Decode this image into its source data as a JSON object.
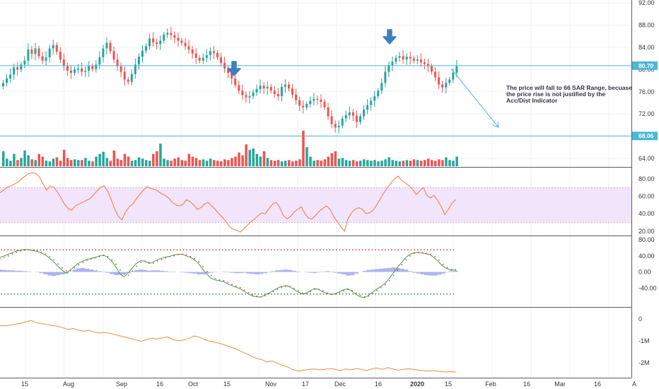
{
  "colors": {
    "up": "#26a69a",
    "down": "#ef5350",
    "level_line": "#4bb8d6",
    "rsi_line": "#f07a3a",
    "rsi_band": "#f1e4fb",
    "osc_line": "#c0504d",
    "osc_signal": "#4c9a4c",
    "osc_hist": "#9fa8ea",
    "acc_line": "#f08b3d",
    "arrow": "#3f7fc0",
    "badge": "#4bb8d6",
    "dots_top": "#d93a3a",
    "dots_bottom": "#2f8f3a"
  },
  "chart_data": [
    {
      "type": "candlestick",
      "name": "price",
      "y_ticks": [
        "92.00",
        "88.00",
        "84.00",
        "80.00",
        "76.00",
        "72.00",
        "68.00",
        "64.00"
      ],
      "ylim": [
        63,
        92
      ],
      "level_lines": [
        {
          "value": 80.7,
          "label": "80.70"
        },
        {
          "value": 68.06,
          "label": "68.06"
        }
      ],
      "closes": [
        77.6,
        78.4,
        79.1,
        80.4,
        80.0,
        80.9,
        81.6,
        83.6,
        82.8,
        83.8,
        82.4,
        81.6,
        82.2,
        83.8,
        84.4,
        83.2,
        81.8,
        80.6,
        79.8,
        79.4,
        80.0,
        80.2,
        79.6,
        79.8,
        80.6,
        80.1,
        80.9,
        82.2,
        83.8,
        84.8,
        83.3,
        81.8,
        80.6,
        79.6,
        78.2,
        77.8,
        79.2,
        80.9,
        82.3,
        83.4,
        84.2,
        85.6,
        84.9,
        84.6,
        85.2,
        86.3,
        86.6,
        86.2,
        85.7,
        85.2,
        84.8,
        84.2,
        83.6,
        82.9,
        82.1,
        81.6,
        82.1,
        82.6,
        83.3,
        83.0,
        82.2,
        81.2,
        80.2,
        79.4,
        78.4,
        77.2,
        76.2,
        75.4,
        75.0,
        75.2,
        75.9,
        76.5,
        77.1,
        76.6,
        76.9,
        76.2,
        75.6,
        75.2,
        76.9,
        77.3,
        76.6,
        75.5,
        74.5,
        73.5,
        73.2,
        73.8,
        74.4,
        74.7,
        74.6,
        74.2,
        73.2,
        71.6,
        70.2,
        69.6,
        69.9,
        71.2,
        71.8,
        72.3,
        71.7,
        70.6,
        71.6,
        72.8,
        73.6,
        74.4,
        75.2,
        76.2,
        77.6,
        79.6,
        80.8,
        81.4,
        82.1,
        82.4,
        81.8,
        82.3,
        82.0,
        81.6,
        81.8,
        81.3,
        81.0,
        80.6,
        79.6,
        78.6,
        77.3,
        76.8,
        77.6,
        78.2,
        79.4,
        80.6
      ]
    },
    {
      "type": "bar",
      "name": "volume",
      "values": [
        2.2,
        1.1,
        0.8,
        1.8,
        0.9,
        1.2,
        2.3,
        1.6,
        1.0,
        0.9,
        1.8,
        1.4,
        0.8,
        0.7,
        1.1,
        1.3,
        0.8,
        2.4,
        1.2,
        0.9,
        1.0,
        0.9,
        0.9,
        1.2,
        0.8,
        0.7,
        1.4,
        1.8,
        2.1,
        1.2,
        0.8,
        2.3,
        1.1,
        0.9,
        1.8,
        1.4,
        0.8,
        0.9,
        1.3,
        1.1,
        0.9,
        0.8,
        1.8,
        2.2,
        3.3,
        1.1,
        0.9,
        0.8,
        1.1,
        1.3,
        0.9,
        0.8,
        1.8,
        1.4,
        1.2,
        0.9,
        1.0,
        0.8,
        1.1,
        0.9,
        0.8,
        0.7,
        1.0,
        0.9,
        1.2,
        1.4,
        2.0,
        1.6,
        3.2,
        2.4,
        2.6,
        1.8,
        1.4,
        2.2,
        1.2,
        0.9,
        0.8,
        0.9,
        0.7,
        0.8,
        0.9,
        0.7,
        0.8,
        1.0,
        5.2,
        2.8,
        1.4,
        0.8,
        0.9,
        0.8,
        1.0,
        1.4,
        1.9,
        2.2,
        1.1,
        1.2,
        0.9,
        0.8,
        0.9,
        0.7,
        0.8,
        1.0,
        0.9,
        0.8,
        0.9,
        0.7,
        0.8,
        1.0,
        1.3,
        0.9,
        0.8,
        0.7,
        0.8,
        0.9,
        0.8,
        1.0,
        0.9,
        0.8,
        0.9,
        1.1,
        0.9,
        0.8,
        1.0,
        0.9,
        1.3,
        0.9,
        0.8,
        1.4
      ],
      "max": 6
    },
    {
      "type": "line",
      "name": "rsi",
      "y_ticks": [
        "80.00",
        "60.00",
        "40.00",
        "20.00"
      ],
      "ylim": [
        15,
        92
      ],
      "band": [
        30,
        70
      ],
      "values": [
        64,
        67,
        70,
        72,
        74,
        76,
        80,
        83,
        86,
        87,
        86,
        82,
        74,
        67,
        72,
        70,
        65,
        58,
        51,
        46,
        44,
        49,
        51,
        53,
        55,
        57,
        61,
        66,
        70,
        72,
        66,
        56,
        45,
        37,
        33,
        42,
        48,
        51,
        57,
        62,
        67,
        71,
        69,
        68,
        66,
        63,
        61,
        58,
        53,
        50,
        49,
        51,
        56,
        54,
        50,
        45,
        47,
        51,
        53,
        49,
        45,
        40,
        36,
        31,
        25,
        22,
        21,
        19,
        23,
        27,
        31,
        34,
        38,
        41,
        40,
        46,
        51,
        53,
        47,
        38,
        34,
        37,
        42,
        45,
        48,
        40,
        35,
        34,
        38,
        43,
        46,
        49,
        45,
        37,
        31,
        25,
        20,
        34,
        41,
        45,
        47,
        45,
        40,
        41,
        44,
        50,
        57,
        64,
        70,
        75,
        80,
        83,
        78,
        75,
        72,
        68,
        62,
        66,
        70,
        61,
        58,
        61,
        55,
        48,
        39,
        45,
        52,
        56
      ],
      "x_offset": 0
    },
    {
      "type": "line",
      "name": "oscillator",
      "y_ticks": [
        "80.00",
        "40.00",
        "0.00",
        "-40.00"
      ],
      "ylim": [
        -80,
        80
      ],
      "upper_dots": 55,
      "lower_dots": -55,
      "k": [
        36,
        40,
        44,
        48,
        52,
        54,
        56,
        55,
        53,
        51,
        47,
        42,
        34,
        25,
        14,
        4,
        -3,
        5,
        14,
        22,
        27,
        31,
        34,
        36,
        40,
        42,
        36,
        26,
        12,
        -6,
        -12,
        -2,
        11,
        22,
        28,
        27,
        21,
        25,
        30,
        34,
        37,
        39,
        42,
        44,
        44,
        40,
        36,
        30,
        20,
        6,
        -6,
        -16,
        -20,
        -22,
        -24,
        -30,
        -34,
        -38,
        -42,
        -48,
        -55,
        -60,
        -62,
        -62,
        -57,
        -52,
        -46,
        -40,
        -36,
        -34,
        -37,
        -44,
        -50,
        -55,
        -52,
        -46,
        -41,
        -44,
        -50,
        -54,
        -56,
        -54,
        -49,
        -44,
        -42,
        -48,
        -56,
        -62,
        -64,
        -58,
        -50,
        -42,
        -36,
        -28,
        -16,
        -2,
        12,
        24,
        36,
        44,
        48,
        48,
        47,
        45,
        42,
        34,
        24,
        14,
        8,
        4,
        6
      ],
      "d": [
        32,
        36,
        40,
        45,
        49,
        52,
        54,
        55,
        54,
        52,
        49,
        45,
        38,
        30,
        20,
        10,
        3,
        3,
        10,
        18,
        24,
        29,
        32,
        35,
        38,
        41,
        38,
        30,
        19,
        5,
        -6,
        -8,
        2,
        14,
        24,
        27,
        24,
        22,
        27,
        31,
        35,
        38,
        40,
        43,
        44,
        42,
        38,
        33,
        25,
        13,
        1,
        -9,
        -16,
        -20,
        -22,
        -26,
        -31,
        -35,
        -39,
        -45,
        -51,
        -57,
        -60,
        -62,
        -59,
        -54,
        -49,
        -43,
        -39,
        -36,
        -36,
        -41,
        -47,
        -52,
        -53,
        -49,
        -44,
        -43,
        -47,
        -52,
        -55,
        -55,
        -51,
        -47,
        -44,
        -46,
        -52,
        -58,
        -62,
        -60,
        -54,
        -46,
        -39,
        -32,
        -22,
        -9,
        5,
        18,
        30,
        40,
        46,
        48,
        48,
        46,
        44,
        38,
        29,
        19,
        11,
        6,
        5
      ],
      "hist": [
        6,
        5,
        4,
        4,
        3,
        3,
        2,
        1,
        0,
        -1,
        -3,
        -6,
        -9,
        -10,
        -8,
        -6,
        -4,
        0,
        6,
        9,
        10,
        8,
        6,
        4,
        2,
        1,
        -2,
        -5,
        -8,
        -7,
        -5,
        -3,
        2,
        5,
        6,
        5,
        3,
        4,
        4,
        3,
        2,
        1,
        1,
        0,
        -1,
        -2,
        -3,
        -4,
        -6,
        -6,
        -4,
        -2,
        -1,
        0,
        1,
        -1,
        -2,
        -3,
        -3,
        -2,
        -4,
        -5,
        -6,
        -5,
        -3,
        -1,
        2,
        4,
        5,
        6,
        5,
        3,
        1,
        0,
        -1,
        -2,
        -3,
        -1,
        1,
        2,
        1,
        -2,
        -4,
        -6,
        -9,
        -8,
        -4,
        0,
        3,
        5,
        6,
        7,
        8,
        9,
        10,
        11,
        10,
        8,
        6,
        2,
        -2,
        -4,
        -6,
        -8,
        -9,
        -9,
        -7,
        -4,
        -1,
        2,
        3
      ]
    },
    {
      "type": "line",
      "name": "acc_dist",
      "y_ticks": [
        "0",
        "-1M",
        "-2M"
      ],
      "ylim": [
        -2.55,
        0.35
      ],
      "values": [
        -0.3,
        -0.32,
        -0.28,
        -0.24,
        -0.2,
        -0.12,
        -0.08,
        -0.18,
        -0.22,
        -0.26,
        -0.3,
        -0.34,
        -0.4,
        -0.48,
        -0.44,
        -0.52,
        -0.56,
        -0.52,
        -0.6,
        -0.64,
        -0.62,
        -0.66,
        -0.72,
        -0.78,
        -0.84,
        -0.9,
        -0.96,
        -1.02,
        -0.94,
        -0.88,
        -0.92,
        -0.86,
        -0.82,
        -0.94,
        -1.0,
        -0.96,
        -0.9,
        -0.78,
        -0.82,
        -0.94,
        -1.02,
        -1.06,
        -1.12,
        -1.2,
        -1.28,
        -1.36,
        -1.48,
        -1.58,
        -1.7,
        -1.8,
        -1.86,
        -1.96,
        -1.92,
        -2.02,
        -2.12,
        -2.2,
        -2.32,
        -2.38,
        -2.34,
        -2.3,
        -2.28,
        -2.32,
        -2.3,
        -2.26,
        -2.3,
        -2.36,
        -2.28,
        -2.32,
        -2.26,
        -2.3,
        -2.36,
        -2.28,
        -2.24,
        -2.3,
        -2.22,
        -2.28,
        -2.34,
        -2.3,
        -2.27,
        -2.3,
        -2.34,
        -2.36,
        -2.38,
        -2.36,
        -2.4,
        -2.42,
        -2.4,
        -2.42
      ]
    }
  ],
  "x_axis": {
    "labels": [
      {
        "text": "15",
        "bold": false
      },
      {
        "text": "Aug",
        "bold": false
      },
      {
        "text": "Sep",
        "bold": false
      },
      {
        "text": "16",
        "bold": false
      },
      {
        "text": "Oct",
        "bold": false
      },
      {
        "text": "15",
        "bold": false
      },
      {
        "text": "Nov",
        "bold": false
      },
      {
        "text": "17",
        "bold": false
      },
      {
        "text": "Dec",
        "bold": false
      },
      {
        "text": "16",
        "bold": false
      },
      {
        "text": "2020",
        "bold": true
      },
      {
        "text": "15",
        "bold": false
      },
      {
        "text": "Feb",
        "bold": false
      },
      {
        "text": "16",
        "bold": false
      },
      {
        "text": "Mar",
        "bold": false
      },
      {
        "text": "16",
        "bold": false
      },
      {
        "text": "A",
        "bold": false
      }
    ]
  },
  "annotation": {
    "lines": [
      "The price will fall to 66 SAR Range, becuase",
      "the price rise is not justified by the",
      "Acc/Dist Indicator"
    ]
  },
  "markers": [
    {
      "icon": "down-arrow-icon"
    },
    {
      "icon": "down-arrow-icon"
    }
  ]
}
